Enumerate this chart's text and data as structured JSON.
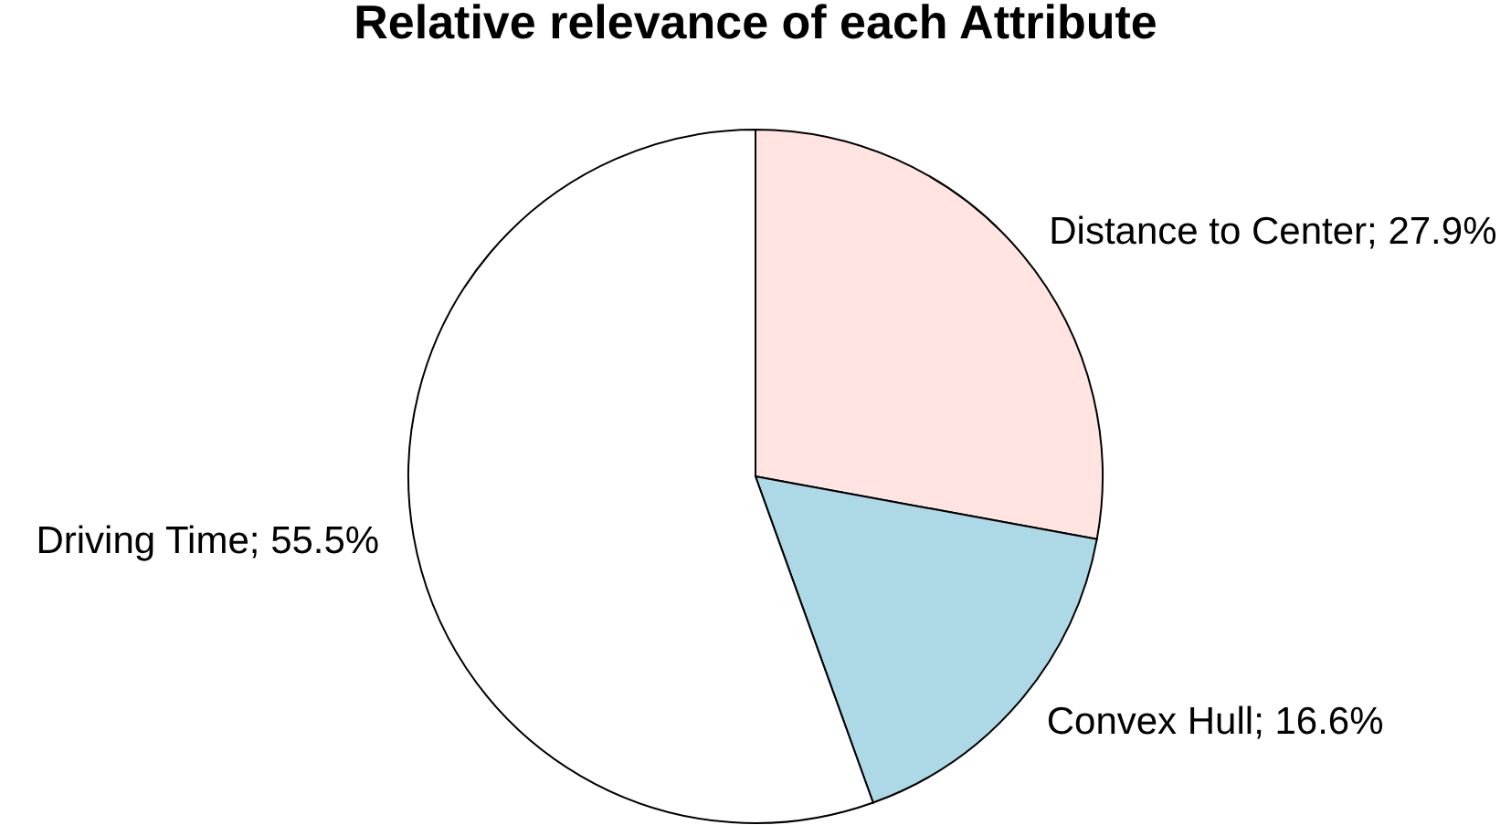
{
  "chart_data": {
    "type": "pie",
    "title": "Relative relevance of each Attribute",
    "categories": [
      "Distance to Center; 27.9%",
      "Convex Hull; 16.6%",
      "Driving Time; 55.5%"
    ],
    "values": [
      27.9,
      16.6,
      55.5
    ],
    "colors": [
      "#ffe4e1",
      "#add8e6",
      "#ffffff"
    ]
  }
}
